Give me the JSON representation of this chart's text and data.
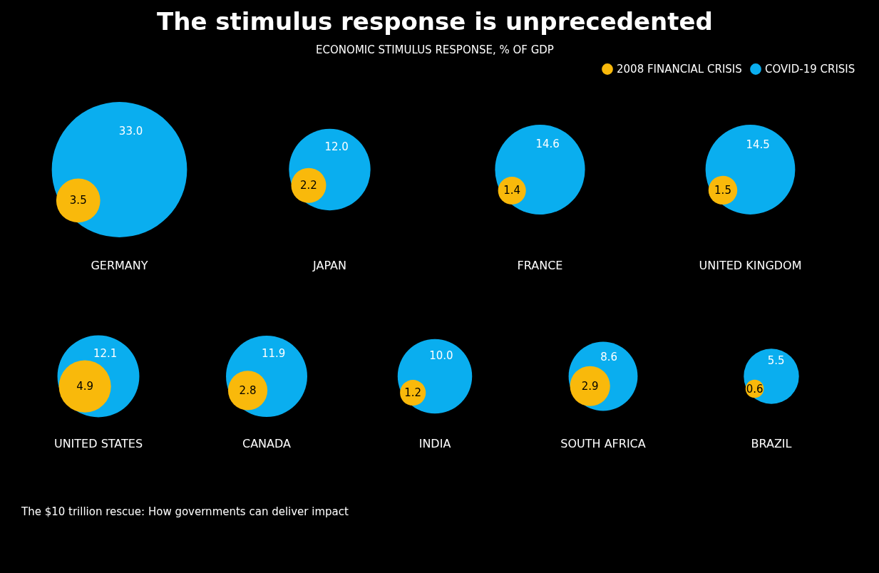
{
  "chart_data": {
    "type": "other",
    "title": "The stimulus response is unprecedented",
    "subtitle": "ECONOMIC STIMULUS RESPONSE, % OF GDP",
    "categories": [
      "GERMANY",
      "JAPAN",
      "FRANCE",
      "UNITED KINGDOM",
      "UNITED STATES",
      "CANADA",
      "INDIA",
      "SOUTH AFRICA",
      "BRAZIL"
    ],
    "series": [
      {
        "name": "2008 FINANCIAL CRISIS",
        "color": "#f9b90b",
        "values": [
          3.5,
          2.2,
          1.4,
          1.5,
          4.9,
          2.8,
          1.2,
          2.9,
          0.6
        ],
        "value_labels": [
          "3.5",
          "2.2",
          "1.4",
          "1.5",
          "4.9",
          "2.8",
          "1.2",
          "2.9",
          "0.6"
        ]
      },
      {
        "name": "COVID-19 CRISIS",
        "color": "#0aaeef",
        "values": [
          33.0,
          12.0,
          14.6,
          14.5,
          12.1,
          11.9,
          10.0,
          8.6,
          5.5
        ],
        "value_labels": [
          "33.0",
          "12.0",
          "14.6",
          "14.5",
          "12.1",
          "11.9",
          "10.0",
          "8.6",
          "5.5"
        ]
      }
    ],
    "legend": "top right",
    "annotations": [
      "The $10 trillion rescue: How governments can deliver impact"
    ]
  }
}
